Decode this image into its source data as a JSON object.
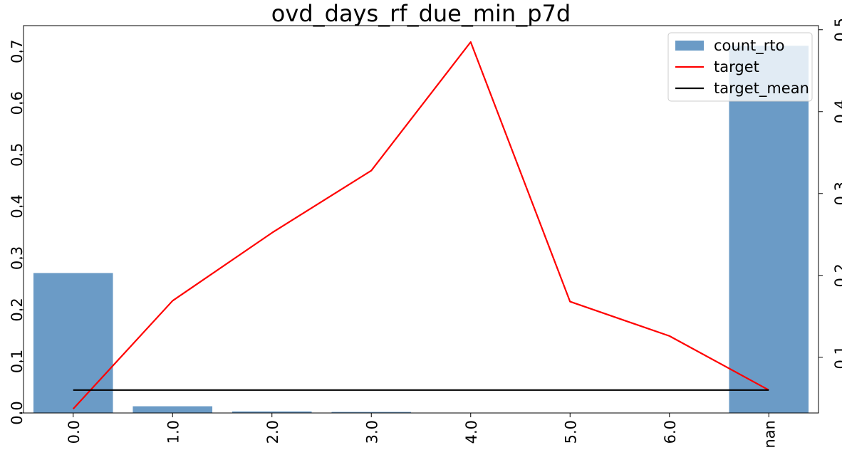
{
  "chart_data": {
    "type": "bar",
    "title": "ovd_days_rf_due_min_p7d",
    "categories": [
      "0.0",
      "1.0",
      "2.0",
      "3.0",
      "4.0",
      "5.0",
      "6.0",
      "nan"
    ],
    "series": [
      {
        "name": "count_rto",
        "type": "bar",
        "axis": "left",
        "color": "#6b9bc6",
        "values": [
          0.271,
          0.013,
          0.003,
          0.002,
          0.0,
          0.0,
          0.0,
          0.711
        ]
      },
      {
        "name": "target",
        "type": "line",
        "axis": "right",
        "color": "#ff0000",
        "values": [
          0.037,
          0.169,
          0.252,
          0.328,
          0.485,
          0.168,
          0.126,
          0.06
        ]
      },
      {
        "name": "target_mean",
        "type": "line",
        "axis": "right",
        "color": "#000000",
        "values": [
          0.06,
          0.06,
          0.06,
          0.06,
          0.06,
          0.06,
          0.06,
          0.06
        ]
      }
    ],
    "y_left": {
      "ylim": [
        0,
        0.75
      ],
      "ticks": [
        "0.0",
        "0.1",
        "0.2",
        "0.3",
        "0.4",
        "0.5",
        "0.6",
        "0.7"
      ]
    },
    "y_right": {
      "ylim": [
        0.032,
        0.505
      ],
      "ticks": [
        "0.1",
        "0.2",
        "0.3",
        "0.4",
        "0.5"
      ]
    },
    "legend": {
      "position": "top-right",
      "entries": [
        "count_rto",
        "target",
        "target_mean"
      ]
    },
    "grid": false,
    "xlabel": "",
    "ylabel": ""
  }
}
